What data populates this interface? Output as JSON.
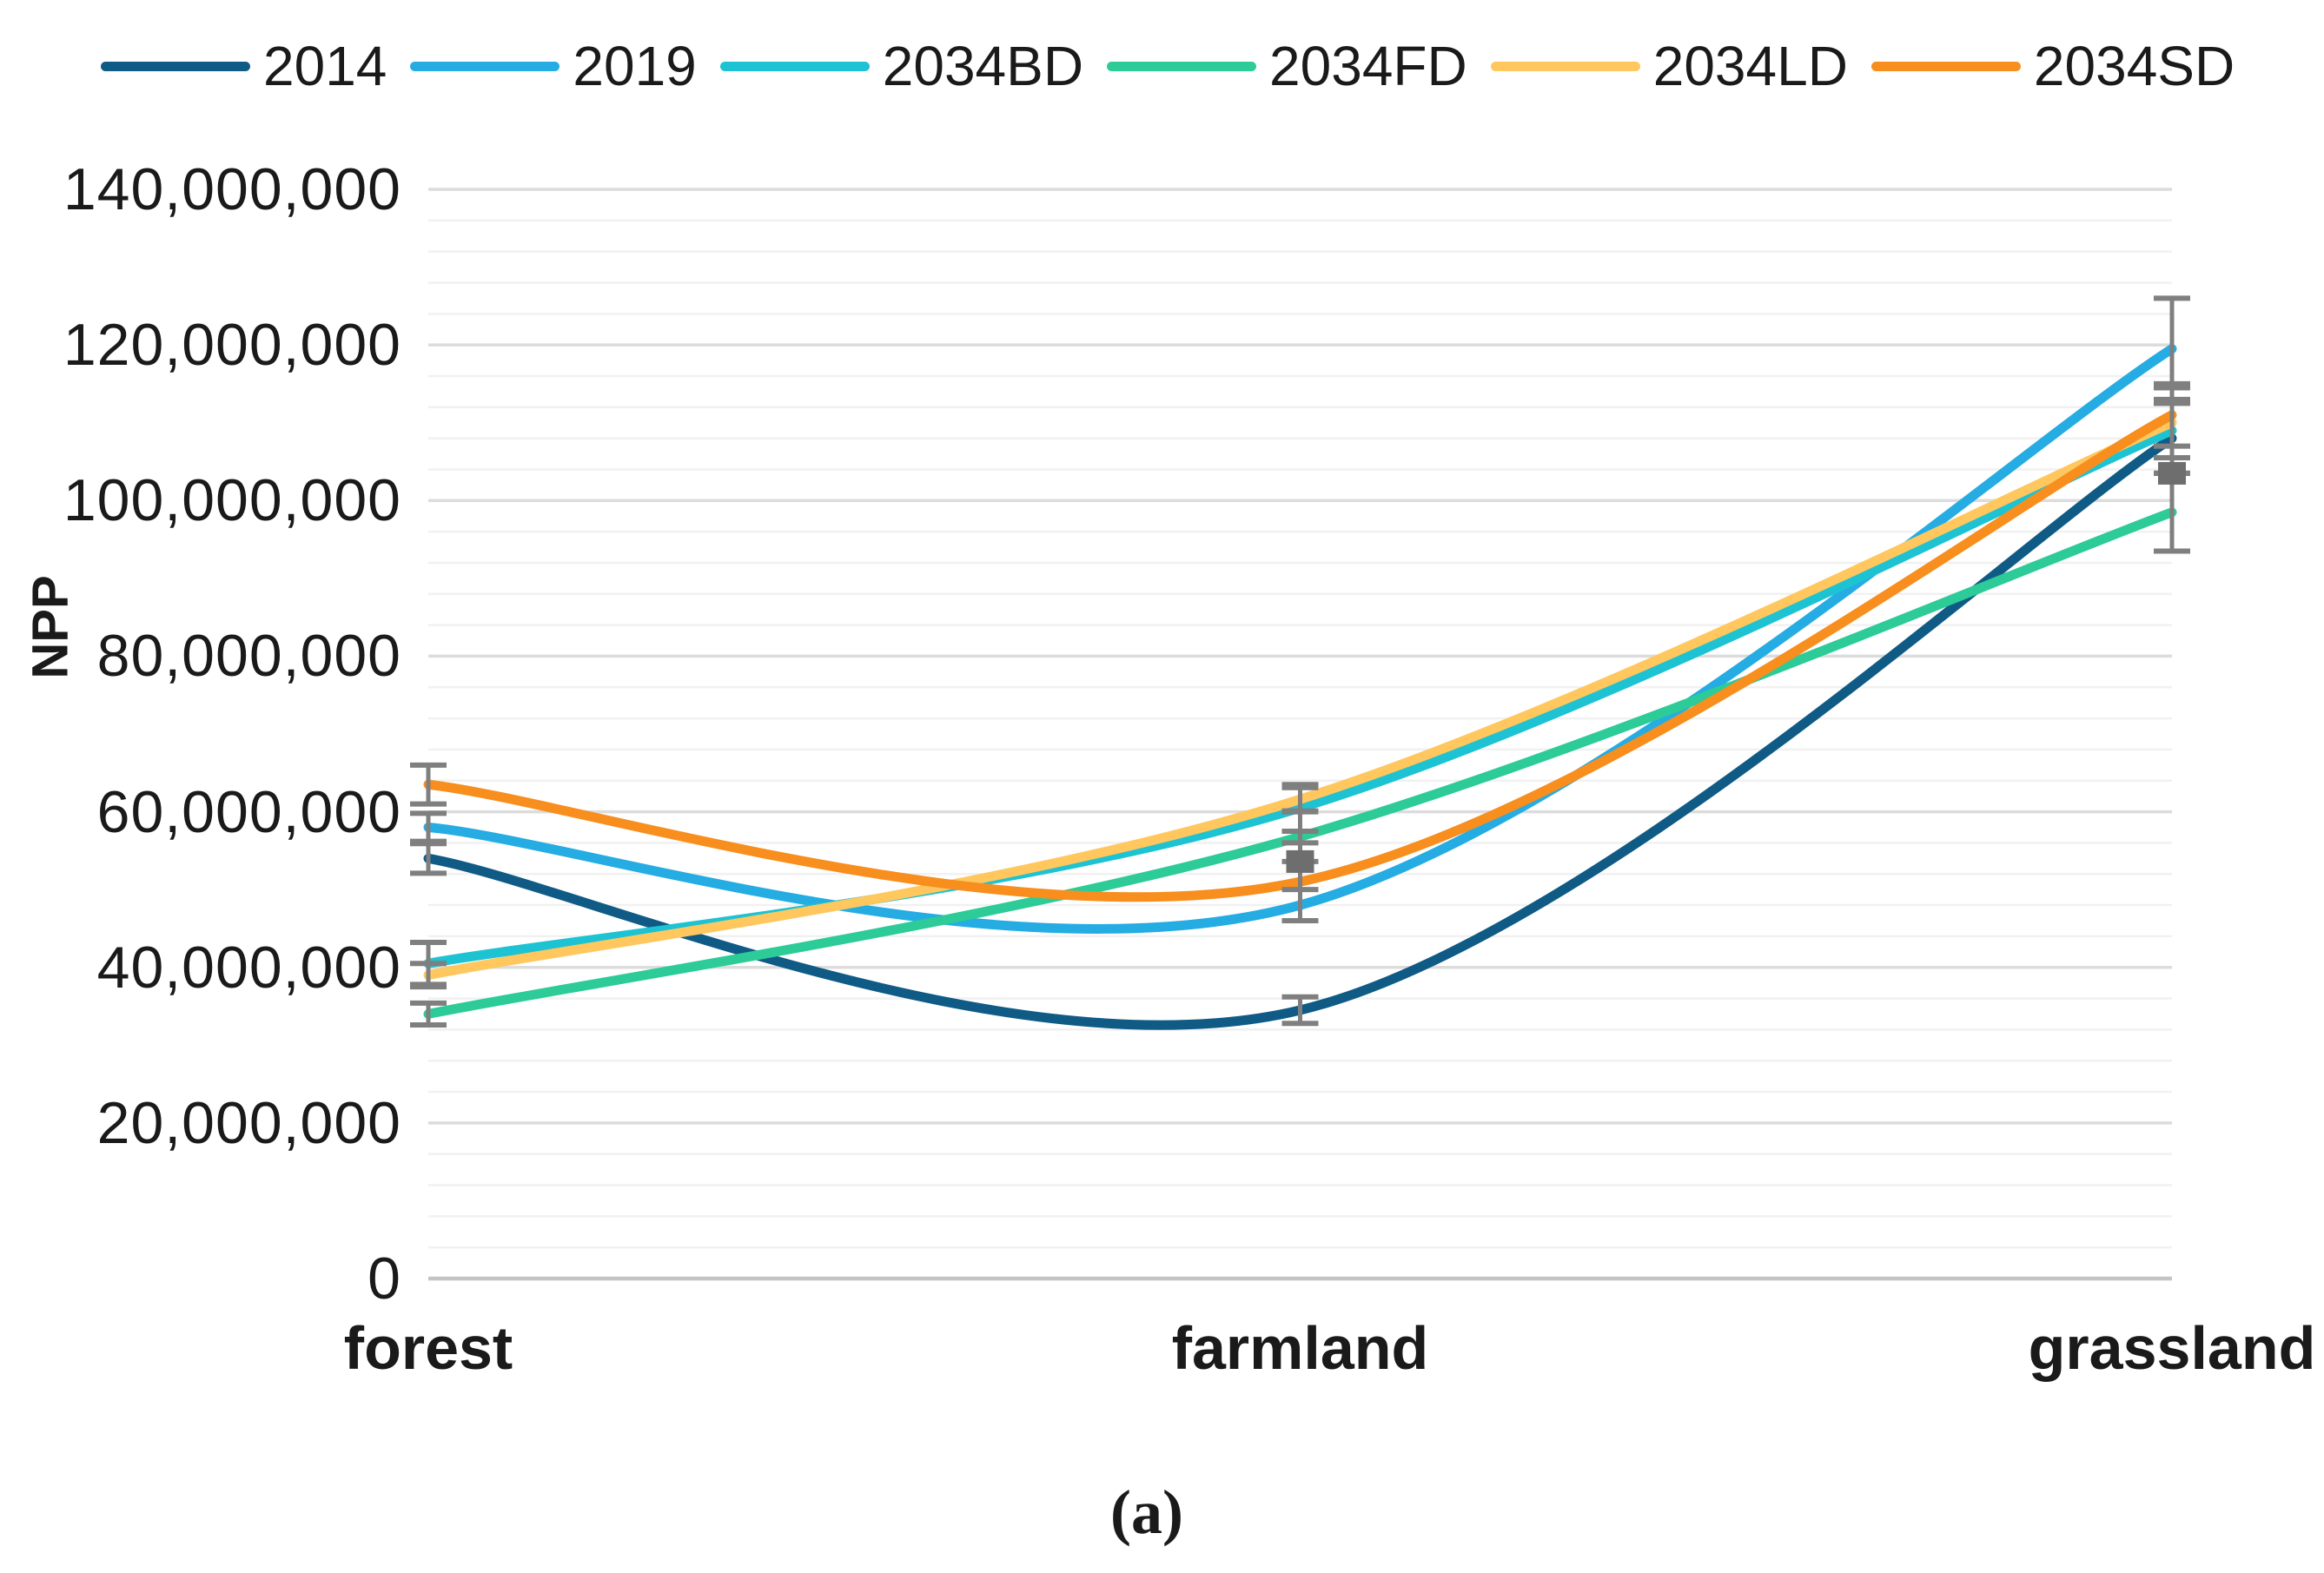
{
  "figure": {
    "caption": "(a)"
  },
  "colors": {
    "grid_minor": "#f1f1f1",
    "grid_major": "#dcdcdc",
    "axis_line": "#c4c4c4",
    "error_bar": "#7f7f7f",
    "text": "#1a1a1a",
    "background": "#ffffff"
  },
  "chart_data": {
    "type": "line",
    "title": "",
    "xlabel": "",
    "ylabel": "NPP",
    "smooth": true,
    "grid": true,
    "legend_position": "top",
    "categories": [
      "forest",
      "farmland",
      "grassland"
    ],
    "y_axis": {
      "min": 0,
      "max": 140000000,
      "major_unit": 20000000,
      "minor_unit": 4000000,
      "tick_labels_top_down": [
        "140,000,000",
        "120,000,000",
        "100,000,000",
        "80,000,000",
        "60,000,000",
        "40,000,000",
        "20,000,000",
        "0"
      ]
    },
    "series": [
      {
        "name": "2014",
        "color": "#0f5b85",
        "values": [
          54000000,
          34500000,
          108000000
        ],
        "errors": [
          1900000,
          1700000,
          4500000
        ]
      },
      {
        "name": "2019",
        "color": "#25ace3",
        "values": [
          58000000,
          48000000,
          119500000
        ],
        "errors": [
          1800000,
          2000000,
          6500000
        ]
      },
      {
        "name": "2034BD",
        "color": "#1dc3d3",
        "values": [
          40500000,
          60500000,
          109000000
        ],
        "errors": [
          2700000,
          3000000,
          5500000
        ]
      },
      {
        "name": "2034FD",
        "color": "#2ccb97",
        "values": [
          34000000,
          56800000,
          98500000
        ],
        "errors": [
          1400000,
          3200000,
          5000000
        ]
      },
      {
        "name": "2034LD",
        "color": "#ffc75e",
        "values": [
          39000000,
          61600000,
          110000000
        ],
        "errors": [
          1500000,
          1500000,
          4500000
        ]
      },
      {
        "name": "2034SD",
        "color": "#f78e1e",
        "values": [
          63500000,
          51000000,
          111000000
        ],
        "errors": [
          2500000,
          5000000,
          4000000
        ]
      }
    ],
    "error_bar_center_markers": [
      {
        "category": "farmland",
        "value": 53600000
      },
      {
        "category": "grassland",
        "value": 103500000
      }
    ]
  }
}
